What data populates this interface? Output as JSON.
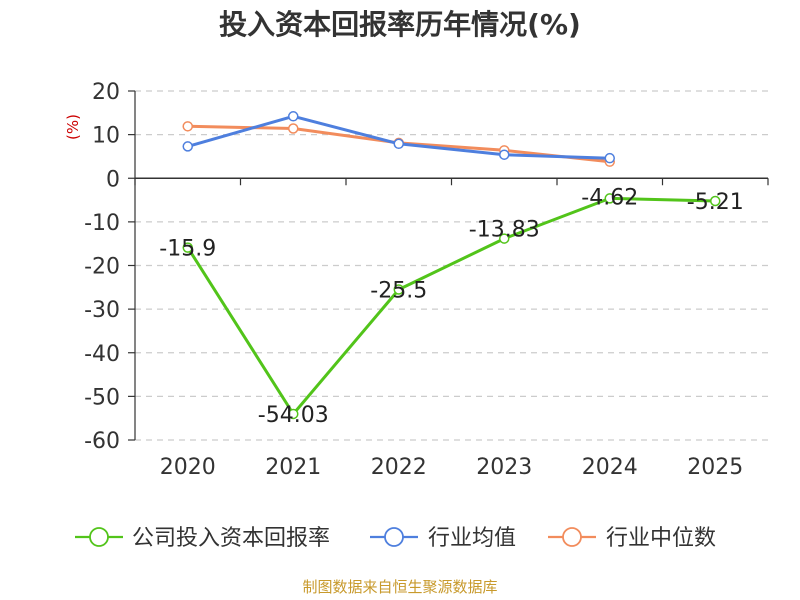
{
  "chart_data": {
    "type": "line",
    "title": "投入资本回报率历年情况(%)",
    "ylabel": "(%)",
    "xlabel": "",
    "categories": [
      "2020",
      "2021",
      "2022",
      "2023",
      "2024",
      "2025"
    ],
    "yticks": [
      20,
      10,
      0,
      -10,
      -20,
      -30,
      -40,
      -50,
      -60
    ],
    "ylim": [
      -60,
      20
    ],
    "grid": true,
    "legend_position": "bottom",
    "series": [
      {
        "name": "公司投入资本回报率",
        "color": "#52c41a",
        "values": [
          -15.9,
          -54.03,
          -25.5,
          -13.83,
          -4.62,
          -5.21
        ],
        "labels": [
          "-15.9",
          "-54.03",
          "-25.5",
          "-13.83",
          "-4.62",
          "-5.21"
        ]
      },
      {
        "name": "行业均值",
        "color": "#4e7fde",
        "values": [
          7.3,
          14.2,
          7.9,
          5.4,
          4.6,
          null
        ]
      },
      {
        "name": "行业中位数",
        "color": "#f28c5c",
        "values": [
          11.9,
          11.4,
          8.1,
          6.4,
          3.8,
          null
        ]
      }
    ],
    "source": "制图数据来自恒生聚源数据库"
  }
}
